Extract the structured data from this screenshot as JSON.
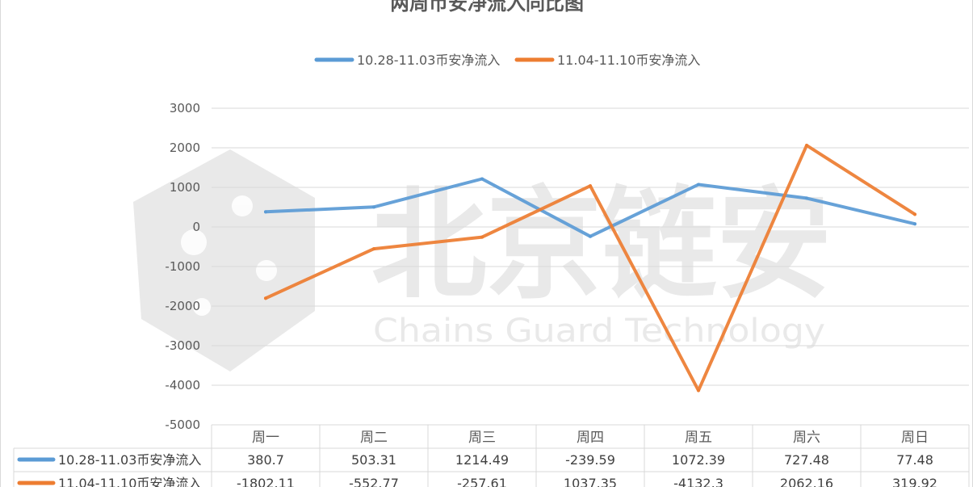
{
  "chart_data": {
    "type": "line",
    "title": "两周币安净流入同比图",
    "watermark": {
      "main": "北京链安",
      "sub": "Chains Guard Technology"
    },
    "categories": [
      "周一",
      "周二",
      "周三",
      "周四",
      "周五",
      "周六",
      "周日"
    ],
    "series": [
      {
        "name": "10.28-11.03币安净流入",
        "color": "#5b9bd5",
        "values": [
          380.7,
          503.31,
          1214.49,
          -239.59,
          1072.39,
          727.48,
          77.48
        ]
      },
      {
        "name": "11.04-11.10币安净流入",
        "color": "#ed7d31",
        "values": [
          -1802.11,
          -552.77,
          -257.61,
          1037.35,
          -4132.3,
          2062.16,
          319.92
        ]
      }
    ],
    "yticks": [
      3000,
      2000,
      1000,
      0,
      -1000,
      -2000,
      -3000,
      -4000,
      -5000
    ],
    "ylim": [
      -5000,
      3000
    ],
    "grid": true,
    "legend_position": "top",
    "data_table": true
  }
}
